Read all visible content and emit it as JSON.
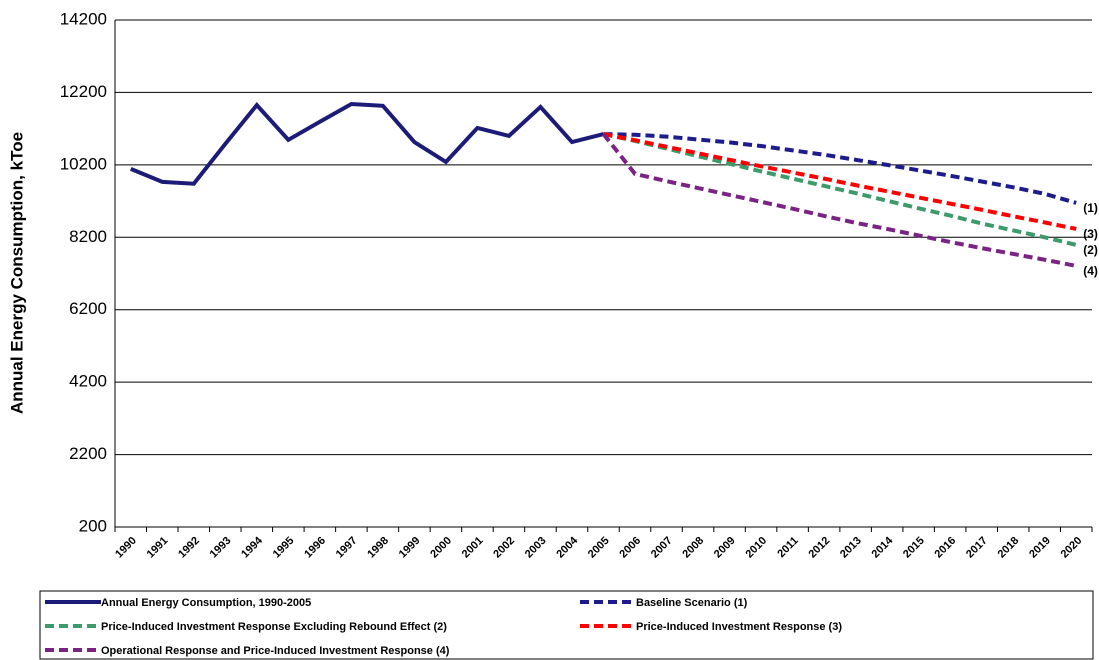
{
  "chart_data": {
    "type": "line",
    "y_label": "Annual Energy Consumption, kToe",
    "categories": [
      "1990",
      "1991",
      "1992",
      "1993",
      "1994",
      "1995",
      "1996",
      "1997",
      "1998",
      "1999",
      "2000",
      "2001",
      "2002",
      "2003",
      "2004",
      "2005",
      "2006",
      "2007",
      "2008",
      "2009",
      "2010",
      "2011",
      "2012",
      "2013",
      "2014",
      "2015",
      "2016",
      "2017",
      "2018",
      "2019",
      "2020"
    ],
    "ylim": [
      200,
      14200
    ],
    "yticks": [
      200,
      2200,
      4200,
      6200,
      8200,
      10200,
      12200,
      14200
    ],
    "grid": true,
    "series": [
      {
        "name": "Annual Energy Consumption, 1990-2005",
        "color": "#1c1c78",
        "dashed": false,
        "values": [
          10090,
          9730,
          9680,
          10780,
          11850,
          10890,
          11390,
          11880,
          11830,
          10830,
          10280,
          11220,
          11000,
          11800,
          10830,
          11050,
          null,
          null,
          null,
          null,
          null,
          null,
          null,
          null,
          null,
          null,
          null,
          null,
          null,
          null,
          null
        ]
      },
      {
        "name": "Baseline Scenario (1)",
        "color": "#1c1c8c",
        "dashed": true,
        "end_label": "(1)",
        "values": [
          null,
          null,
          null,
          null,
          null,
          null,
          null,
          null,
          null,
          null,
          null,
          null,
          null,
          null,
          null,
          11050,
          11030,
          10980,
          10900,
          10820,
          10720,
          10600,
          10480,
          10340,
          10200,
          10050,
          9900,
          9740,
          9580,
          9400,
          9150
        ]
      },
      {
        "name": "Price-Induced Investment Response Excluding Rebound Effect (2)",
        "color": "#3d9a6b",
        "dashed": true,
        "end_label": "(2)",
        "values": [
          null,
          null,
          null,
          null,
          null,
          null,
          null,
          null,
          null,
          null,
          null,
          null,
          null,
          null,
          null,
          11050,
          10860,
          10650,
          10440,
          10230,
          10020,
          9820,
          9620,
          9420,
          9210,
          9000,
          8800,
          8580,
          8390,
          8200,
          7990
        ]
      },
      {
        "name": "Price-Induced Investment Response (3)",
        "color": "#ff0000",
        "dashed": true,
        "end_label": "(3)",
        "values": [
          null,
          null,
          null,
          null,
          null,
          null,
          null,
          null,
          null,
          null,
          null,
          null,
          null,
          null,
          null,
          11050,
          10880,
          10700,
          10520,
          10340,
          10160,
          9990,
          9820,
          9640,
          9470,
          9300,
          9130,
          8960,
          8780,
          8610,
          8430
        ]
      },
      {
        "name": "Operational Response and Price-Induced Investment Response (4)",
        "color": "#7b2385",
        "dashed": true,
        "end_label": "(4)",
        "values": [
          null,
          null,
          null,
          null,
          null,
          null,
          null,
          null,
          null,
          null,
          null,
          null,
          null,
          null,
          null,
          11050,
          9950,
          9750,
          9560,
          9370,
          9180,
          8990,
          8790,
          8600,
          8430,
          8250,
          8070,
          7900,
          7740,
          7580,
          7410
        ]
      }
    ]
  }
}
